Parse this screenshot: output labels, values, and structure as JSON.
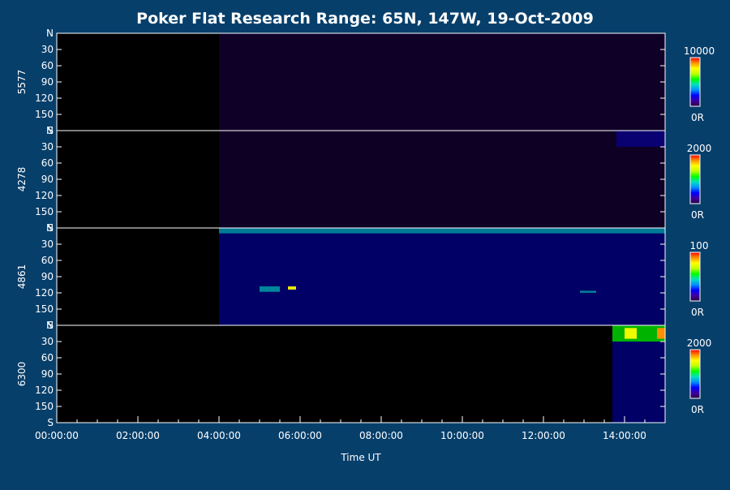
{
  "chart_data": {
    "type": "heatmap",
    "title": "Poker Flat Research Range: 65N, 147W, 19-Oct-2009",
    "xlabel": "Time UT",
    "x_tick_labels": [
      "00:00:00",
      "02:00:00",
      "04:00:00",
      "06:00:00",
      "08:00:00",
      "10:00:00",
      "12:00:00",
      "14:00:00"
    ],
    "xlim_hours": [
      0,
      15
    ],
    "y_tick_labels": [
      "N",
      "30",
      "60",
      "90",
      "120",
      "150",
      "S"
    ],
    "ylim_deg": [
      0,
      180
    ],
    "panels": [
      {
        "channel": "5577",
        "scale_max": "10000",
        "scale_min": "0R",
        "activity": [
          {
            "t_start": 4.0,
            "t_end": 15.0,
            "y_start": 0,
            "y_end": 180,
            "level": 0.1
          }
        ]
      },
      {
        "channel": "4278",
        "scale_max": "2000",
        "scale_min": "0R",
        "activity": [
          {
            "t_start": 4.0,
            "t_end": 15.0,
            "y_start": 0,
            "y_end": 180,
            "level": 0.08
          },
          {
            "t_start": 13.8,
            "t_end": 15.0,
            "y_start": 0,
            "y_end": 30,
            "level": 0.2
          }
        ]
      },
      {
        "channel": "4861",
        "scale_max": "100",
        "scale_min": "0R",
        "activity": [
          {
            "t_start": 4.0,
            "t_end": 15.0,
            "y_start": 0,
            "y_end": 180,
            "level": 0.25
          },
          {
            "t_start": 4.0,
            "t_end": 15.0,
            "y_start": 0,
            "y_end": 10,
            "level": 0.4
          },
          {
            "t_start": 5.0,
            "t_end": 5.5,
            "y_start": 108,
            "y_end": 118,
            "level": 0.45
          },
          {
            "t_start": 5.7,
            "t_end": 5.9,
            "y_start": 108,
            "y_end": 114,
            "level": 0.75
          },
          {
            "t_start": 12.9,
            "t_end": 13.3,
            "y_start": 116,
            "y_end": 120,
            "level": 0.4
          }
        ]
      },
      {
        "channel": "6300",
        "scale_max": "2000",
        "scale_min": "0R",
        "activity": [
          {
            "t_start": 13.7,
            "t_end": 15.0,
            "y_start": 30,
            "y_end": 180,
            "level": 0.25
          },
          {
            "t_start": 13.7,
            "t_end": 15.0,
            "y_start": 0,
            "y_end": 30,
            "level": 0.55
          },
          {
            "t_start": 14.0,
            "t_end": 14.3,
            "y_start": 5,
            "y_end": 25,
            "level": 0.78
          },
          {
            "t_start": 14.8,
            "t_end": 15.0,
            "y_start": 5,
            "y_end": 25,
            "level": 0.9
          }
        ]
      }
    ],
    "colorbar": [
      "#2a0040",
      "#3d00a0",
      "#0000ff",
      "#0090ff",
      "#00e0c0",
      "#00ff00",
      "#c0ff00",
      "#ffff00",
      "#ff9000",
      "#ff0000"
    ]
  }
}
